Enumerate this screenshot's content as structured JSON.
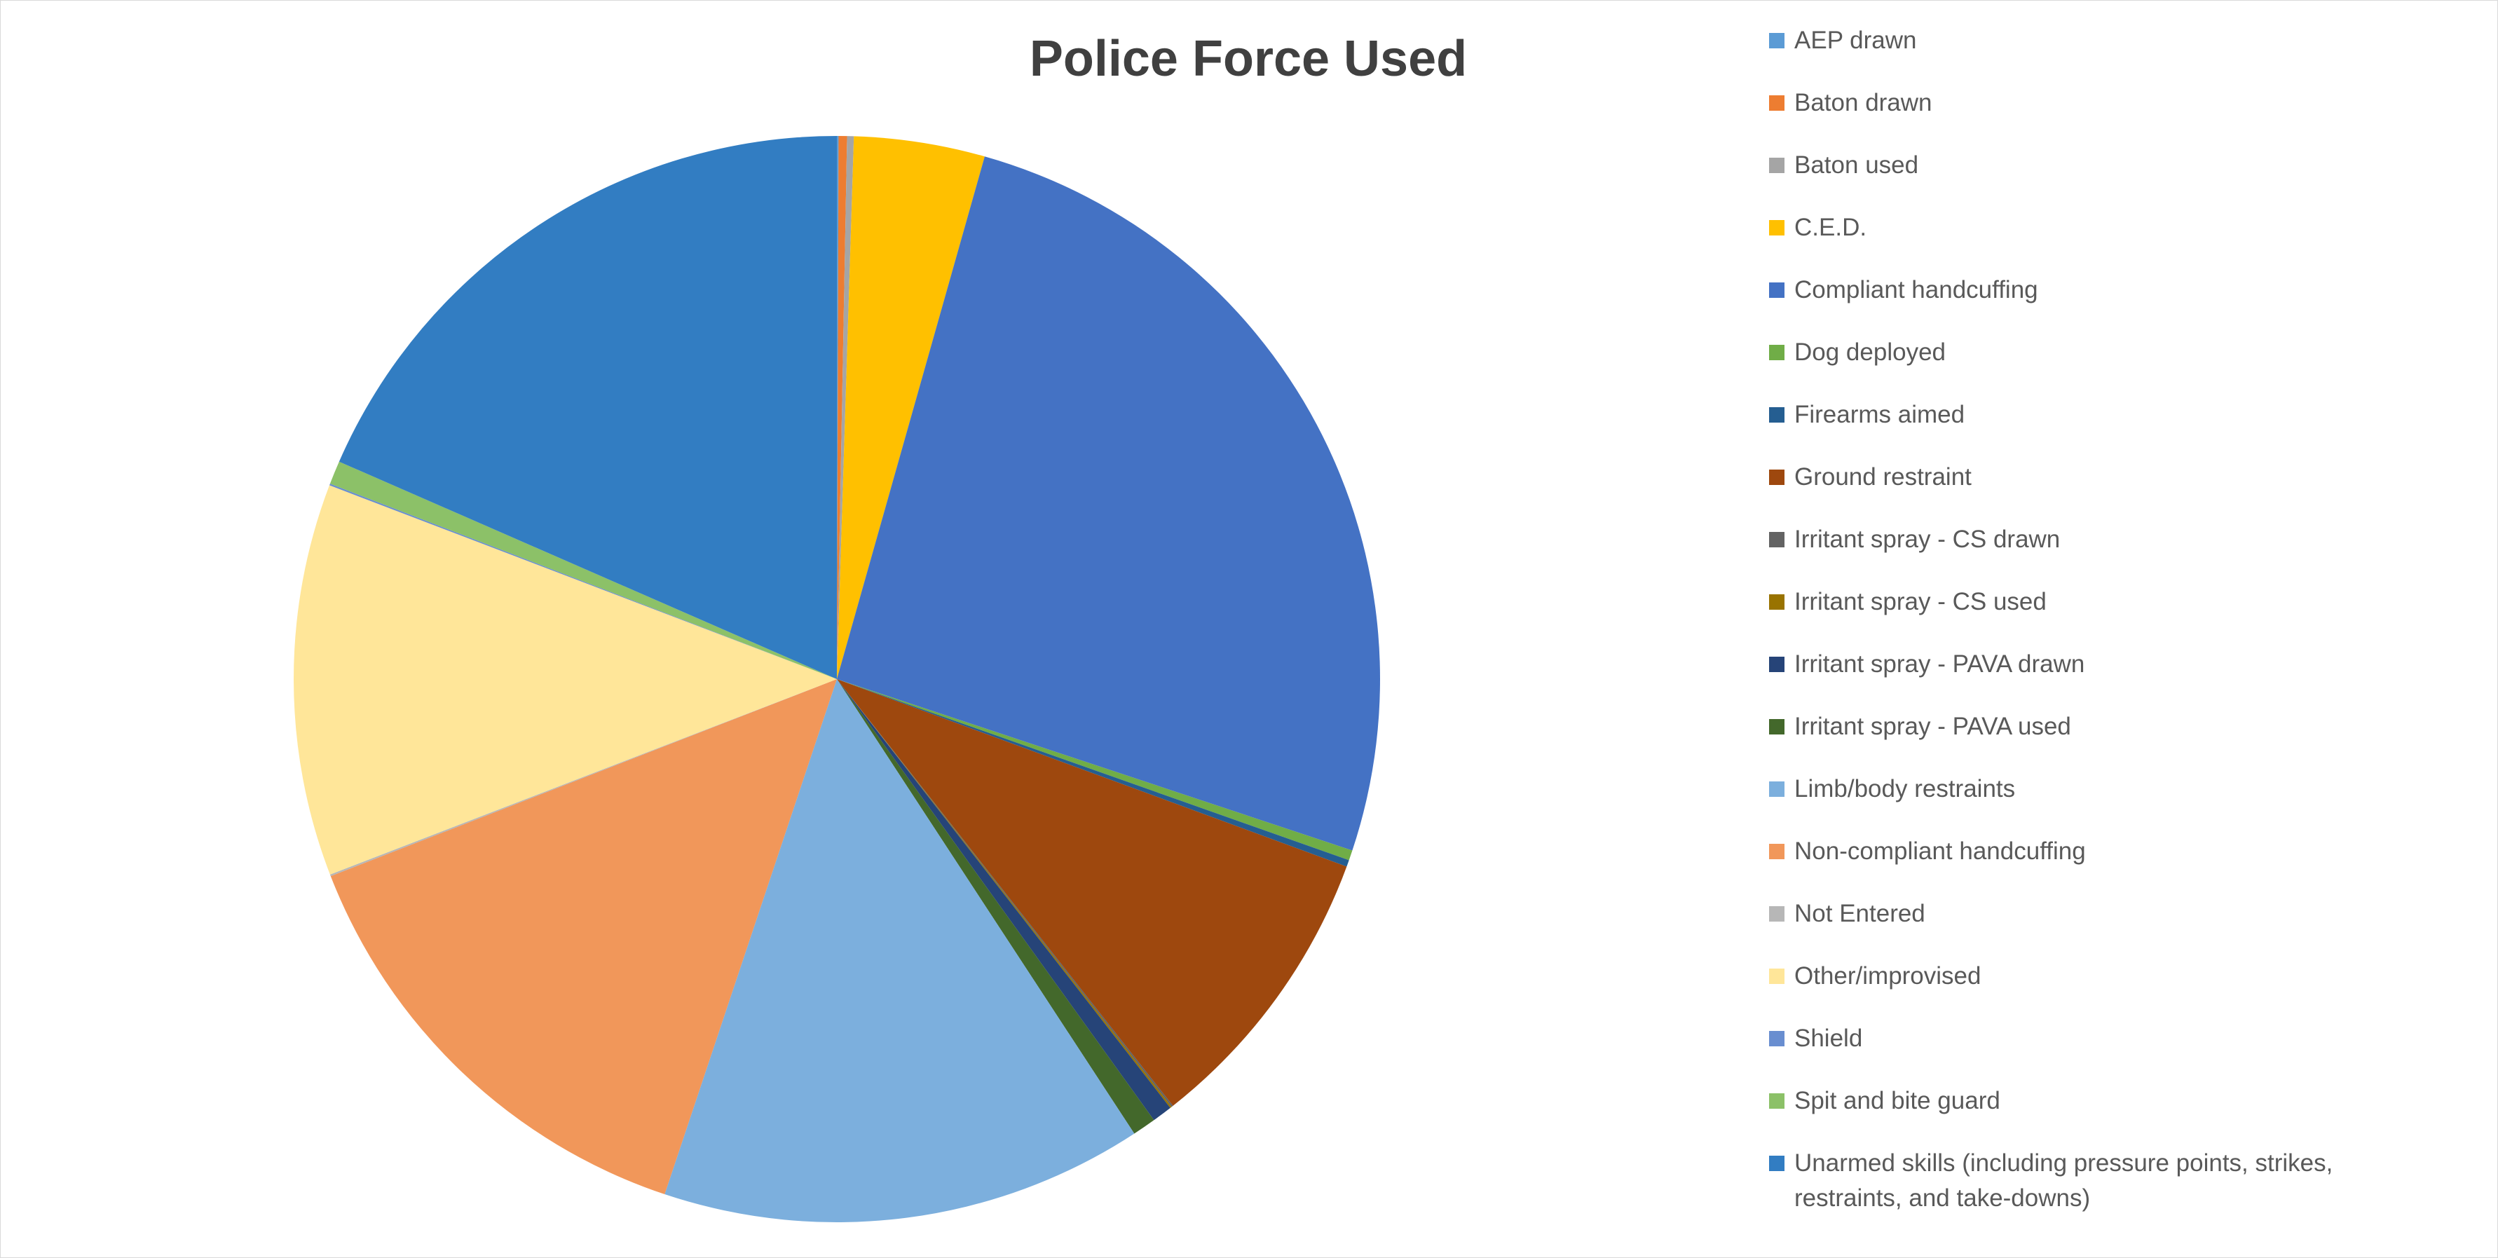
{
  "chart_data": {
    "type": "pie",
    "title": "Police Force Used",
    "categories": [
      "AEP drawn",
      "Baton drawn",
      "Baton used",
      "C.E.D.",
      "Compliant handcuffing",
      "Dog deployed",
      "Firearms aimed",
      "Ground restraint",
      "Irritant spray - CS drawn",
      "Irritant spray - CS used",
      "Irritant spray - PAVA drawn",
      "Irritant spray - PAVA used",
      "Limb/body restraints",
      "Non-compliant handcuffing",
      "Not Entered",
      "Other/improvised",
      "Shield",
      "Spit and bite guard",
      "Unarmed skills (including pressure points, strikes, restraints, and take-downs)"
    ],
    "values": [
      0.05,
      0.25,
      0.2,
      3.9,
      25.8,
      0.3,
      0.2,
      8.8,
      0.05,
      0.05,
      0.6,
      0.7,
      14.4,
      14.0,
      0.05,
      11.7,
      0.05,
      0.7,
      18.5
    ],
    "colors": [
      "#5b9bd5",
      "#ed7d31",
      "#a5a5a5",
      "#ffc000",
      "#4472c4",
      "#70ad47",
      "#255e91",
      "#9e480e",
      "#636363",
      "#997300",
      "#264478",
      "#43682b",
      "#7cafdd",
      "#f1975a",
      "#b7b7b7",
      "#ffe699",
      "#698ed0",
      "#8cc168",
      "#327dc2"
    ],
    "legend": "right"
  }
}
